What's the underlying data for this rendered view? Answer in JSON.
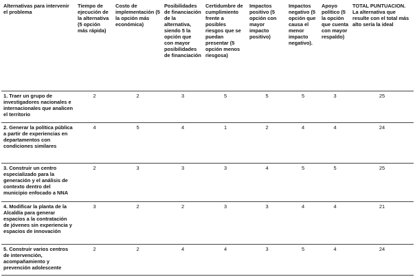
{
  "table": {
    "headers": [
      "Alternativas para intervenir el problema",
      "Tiempo de ejecución de la alternativa (5 opción más rápida)",
      "Costo de implementación (5 la opción más económica)",
      "Posibilidades de financiación de la alternativa, siendo 5 la opción que con mayor posibilidades de financiación",
      "Certidumbre de cumplimiento frente a posibles riesgos que se puedan presentar (5 opción menos riesgosa)",
      "Impactos positivo (5 opción con mayor impacto positivo)",
      "Impactos negativo (5 opción que causa el menor impacto negativo).",
      "Apoyo político (5 la opción que cuenta con mayor respaldo)",
      "TOTAL PUNTUACION. La alternativa que resulte con el total más alto sería la ideal"
    ],
    "rows": [
      [
        "1. Traer un grupo de investigadores nacionales e internacionales que analicen el territorio",
        2,
        2,
        3,
        5,
        5,
        5,
        3,
        25
      ],
      [
        "2. Generar la política pública a partir de experiencias en departamentos con condiciones similares",
        4,
        5,
        4,
        1,
        2,
        4,
        4,
        24
      ],
      [
        "3. Construir un centro especializado para la generación y el análisis de contexto dentro del municipio enfocado a NNA",
        2,
        3,
        3,
        3,
        4,
        5,
        5,
        25
      ],
      [
        "4. Modificar la planta de la Alcaldía para generar espacios a la contratación de jóvenes sin experiencia y espacios de innovación",
        3,
        2,
        2,
        3,
        3,
        4,
        4,
        21
      ],
      [
        "5. Construir varios centros de intervención, acompañamiento y prevención adolescente",
        2,
        2,
        4,
        4,
        3,
        5,
        4,
        24
      ]
    ]
  }
}
